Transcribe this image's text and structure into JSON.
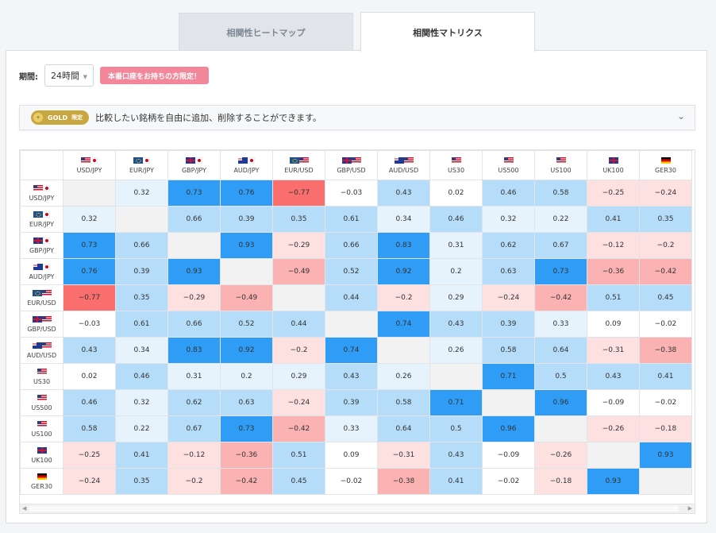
{
  "tabs": [
    {
      "label": "相関性ヒートマップ",
      "active": false
    },
    {
      "label": "相関性マトリクス",
      "active": true
    }
  ],
  "period": {
    "label": "期間:",
    "value": "24時間"
  },
  "promo_badge": "本番口座をお持ちの方限定！",
  "notice": {
    "badge_label": "GOLD",
    "badge_sub": "限定",
    "text": "比較したい銘柄を自由に追加、削除することができます。",
    "chevron_icon": "chevron-down-icon"
  },
  "colors": {
    "strong_positive": "#2f9cf5",
    "medium_positive": "#b5dcf8",
    "light_positive": "#e6f3fc",
    "neutral": "#ffffff",
    "light_negative": "#fde0e0",
    "medium_negative": "#fbb2b2",
    "strong_negative": "#fb6e6e",
    "diagonal": "#f2f2f2"
  },
  "matrix": {
    "symbols": [
      {
        "name": "USD/JPY",
        "flags": [
          "us",
          "jp"
        ]
      },
      {
        "name": "EUR/JPY",
        "flags": [
          "eu",
          "jp"
        ]
      },
      {
        "name": "GBP/JPY",
        "flags": [
          "gb",
          "jp"
        ]
      },
      {
        "name": "AUD/JPY",
        "flags": [
          "au",
          "jp"
        ]
      },
      {
        "name": "EUR/USD",
        "flags": [
          "eu",
          "us"
        ]
      },
      {
        "name": "GBP/USD",
        "flags": [
          "gb",
          "us"
        ]
      },
      {
        "name": "AUD/USD",
        "flags": [
          "au",
          "us"
        ]
      },
      {
        "name": "US30",
        "flags": [
          "us"
        ]
      },
      {
        "name": "US500",
        "flags": [
          "us"
        ]
      },
      {
        "name": "US100",
        "flags": [
          "us"
        ]
      },
      {
        "name": "UK100",
        "flags": [
          "gb"
        ]
      },
      {
        "name": "GER30",
        "flags": [
          "de"
        ]
      }
    ],
    "values": [
      [
        "",
        "0.32",
        "0.73",
        "0.76",
        "−0.77",
        "−0.03",
        "0.43",
        "0.02",
        "0.46",
        "0.58",
        "−0.25",
        "−0.24"
      ],
      [
        "0.32",
        "",
        "0.66",
        "0.39",
        "0.35",
        "0.61",
        "0.34",
        "0.46",
        "0.32",
        "0.22",
        "0.41",
        "0.35"
      ],
      [
        "0.73",
        "0.66",
        "",
        "0.93",
        "−0.29",
        "0.66",
        "0.83",
        "0.31",
        "0.62",
        "0.67",
        "−0.12",
        "−0.2"
      ],
      [
        "0.76",
        "0.39",
        "0.93",
        "",
        "−0.49",
        "0.52",
        "0.92",
        "0.2",
        "0.63",
        "0.73",
        "−0.36",
        "−0.42"
      ],
      [
        "−0.77",
        "0.35",
        "−0.29",
        "−0.49",
        "",
        "0.44",
        "−0.2",
        "0.29",
        "−0.24",
        "−0.42",
        "0.51",
        "0.45"
      ],
      [
        "−0.03",
        "0.61",
        "0.66",
        "0.52",
        "0.44",
        "",
        "0.74",
        "0.43",
        "0.39",
        "0.33",
        "0.09",
        "−0.02"
      ],
      [
        "0.43",
        "0.34",
        "0.83",
        "0.92",
        "−0.2",
        "0.74",
        "",
        "0.26",
        "0.58",
        "0.64",
        "−0.31",
        "−0.38"
      ],
      [
        "0.02",
        "0.46",
        "0.31",
        "0.2",
        "0.29",
        "0.43",
        "0.26",
        "",
        "0.71",
        "0.5",
        "0.43",
        "0.41"
      ],
      [
        "0.46",
        "0.32",
        "0.62",
        "0.63",
        "−0.24",
        "0.39",
        "0.58",
        "0.71",
        "",
        "0.96",
        "−0.09",
        "−0.02"
      ],
      [
        "0.58",
        "0.22",
        "0.67",
        "0.73",
        "−0.42",
        "0.33",
        "0.64",
        "0.5",
        "0.96",
        "",
        "−0.26",
        "−0.18"
      ],
      [
        "−0.25",
        "0.41",
        "−0.12",
        "−0.36",
        "0.51",
        "0.09",
        "−0.31",
        "0.43",
        "−0.09",
        "−0.26",
        "",
        "0.93"
      ],
      [
        "−0.24",
        "0.35",
        "−0.2",
        "−0.42",
        "0.45",
        "−0.02",
        "−0.38",
        "0.41",
        "−0.02",
        "−0.18",
        "0.93",
        ""
      ]
    ]
  },
  "scrollbar": {
    "left_icon": "arrow-left-icon",
    "right_icon": "arrow-right-icon"
  }
}
